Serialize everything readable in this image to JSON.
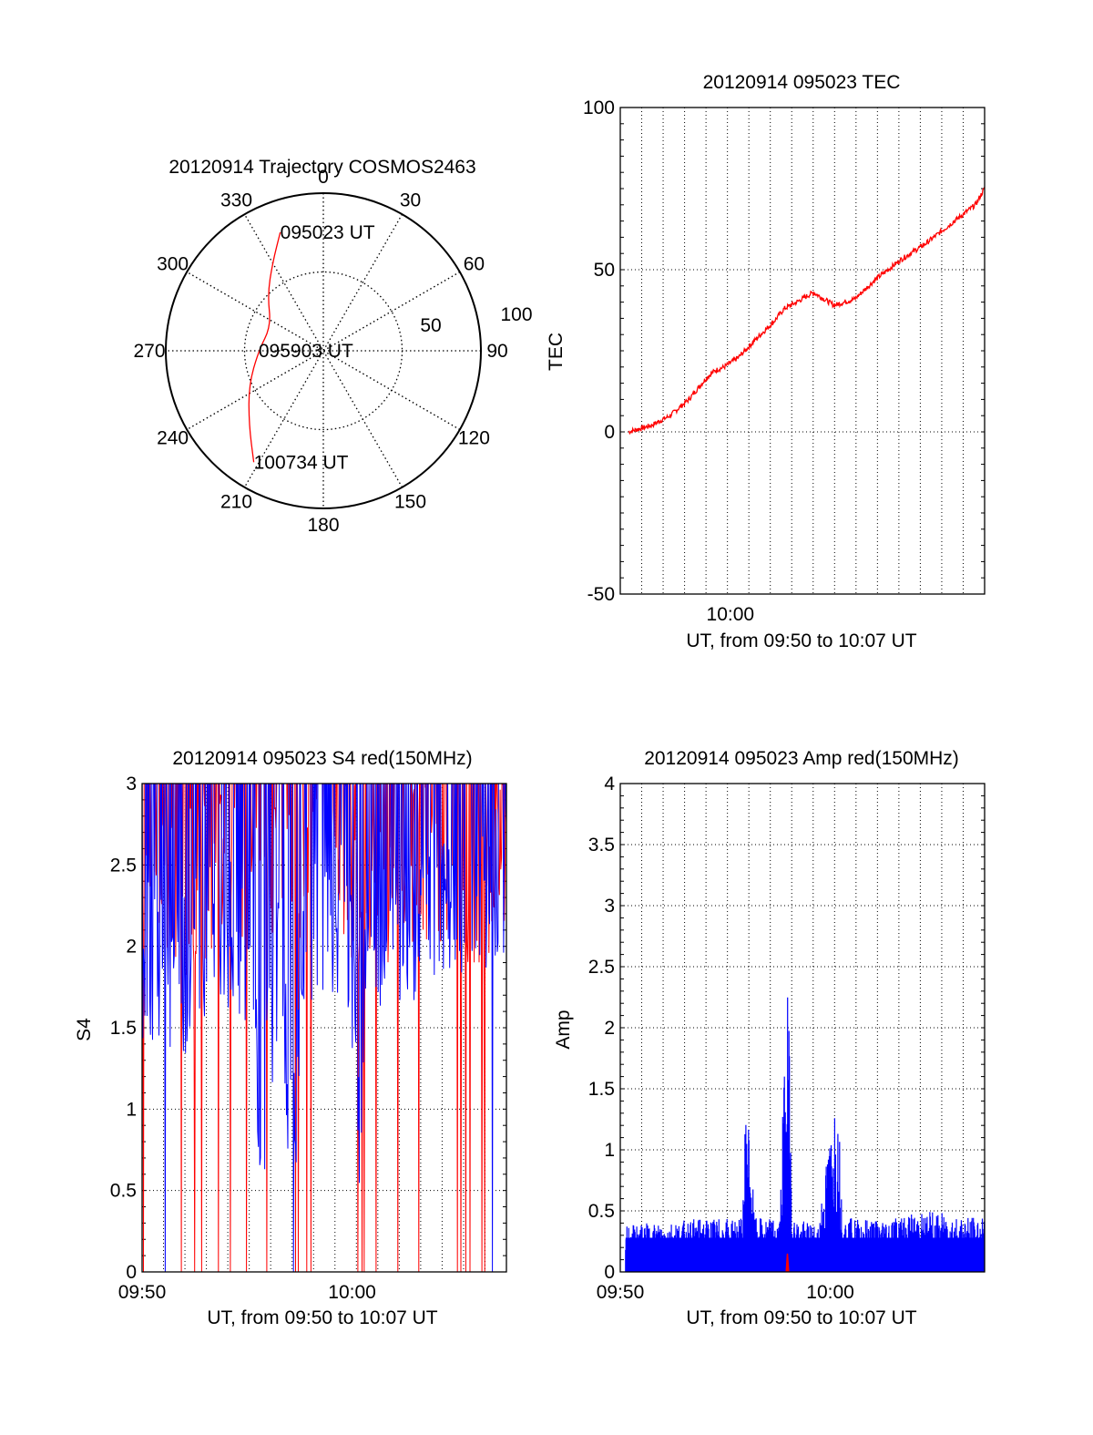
{
  "colors": {
    "red": "#ff0000",
    "blue": "#0000ff",
    "axis": "#000000",
    "grid": "#000000"
  },
  "chart_data": [
    {
      "type": "polar",
      "title": "20120914 Trajectory COSMOS2463",
      "azimuth_labels": [
        "0",
        "30",
        "60",
        "90",
        "120",
        "150",
        "180",
        "210",
        "240",
        "270",
        "300",
        "330"
      ],
      "radial_labels": [
        "50",
        "100"
      ],
      "grid": true,
      "trajectory": [
        {
          "azimuth": 340,
          "elevation": 18
        },
        {
          "azimuth": 330,
          "elevation": 32
        },
        {
          "azimuth": 315,
          "elevation": 45
        },
        {
          "azimuth": 295,
          "elevation": 57
        },
        {
          "azimuth": 270,
          "elevation": 53
        },
        {
          "azimuth": 245,
          "elevation": 43
        },
        {
          "azimuth": 225,
          "elevation": 30
        },
        {
          "azimuth": 212,
          "elevation": 15
        }
      ],
      "annotations": [
        {
          "text": "095023 UT",
          "azimuth": 340,
          "elevation": 18
        },
        {
          "text": "095903 UT",
          "azimuth": 270,
          "elevation": 53
        },
        {
          "text": "100734 UT",
          "azimuth": 212,
          "elevation": 15
        }
      ]
    },
    {
      "type": "line",
      "title": "20120914 095023 TEC",
      "ylabel": "TEC",
      "xlabel": "UT, from 09:50 to 10:07 UT",
      "x_tick_labels": [
        {
          "x": 10.0,
          "label": "10:00"
        }
      ],
      "y_tick_labels": [
        "-50",
        "0",
        "50",
        "100"
      ],
      "xlim": [
        9.947,
        10.1225
      ],
      "ylim": [
        -50,
        100
      ],
      "grid": true,
      "series": [
        {
          "color": "red",
          "x": [
            9.951,
            9.962,
            9.971,
            9.98,
            9.989,
            9.993,
            9.997,
            10.004,
            10.013,
            10.021,
            10.026,
            10.032,
            10.04,
            10.05,
            10.06,
            10.07,
            10.082,
            10.094,
            10.106,
            10.118,
            10.1225
          ],
          "y": [
            0,
            2,
            5,
            10,
            17,
            19,
            20,
            23,
            29,
            34,
            38,
            40,
            43,
            39,
            41,
            47,
            53,
            58,
            64,
            70,
            75
          ]
        }
      ]
    },
    {
      "type": "line",
      "title": "20120914 095023 S4 red(150MHz)",
      "ylabel": "S4",
      "xlabel": "UT, from 09:50 to 10:07 UT",
      "x_tick_labels": [
        {
          "x": 9.8333,
          "label": "09:50"
        },
        {
          "x": 10.0,
          "label": "10:00"
        }
      ],
      "y_tick_labels": [
        "0",
        "0.5",
        "1",
        "1.5",
        "2",
        "2.5",
        "3"
      ],
      "xlim": [
        9.8333,
        10.1225
      ],
      "ylim": [
        0,
        3
      ],
      "grid": true,
      "series": [
        {
          "color": "blue",
          "x": [
            9.84,
            9.86,
            9.88,
            9.9,
            9.92,
            9.925,
            9.93,
            9.94,
            9.955,
            9.96,
            9.965,
            9.98,
            9.99,
            10.0,
            10.006,
            10.01,
            10.03,
            10.05,
            10.07,
            10.09,
            10.11
          ],
          "y": [
            1.7,
            1.5,
            1.8,
            1.9,
            1.6,
            0.9,
            0.8,
            1.7,
            0.5,
            1.6,
            1.8,
            1.9,
            2.0,
            1.6,
            0.8,
            1.7,
            2.0,
            1.9,
            2.1,
            2.0,
            2.2
          ]
        },
        {
          "color": "red",
          "x": [
            9.845,
            9.87,
            9.895,
            9.92,
            9.945,
            9.97,
            9.995,
            10.02,
            10.045,
            10.07,
            10.095,
            10.118
          ],
          "y": [
            2.3,
            2.1,
            2.4,
            2.2,
            2.5,
            2.2,
            2.3,
            2.1,
            2.4,
            2.3,
            2.2,
            2.4
          ]
        }
      ]
    },
    {
      "type": "line",
      "title": "20120914 095023 Amp red(150MHz)",
      "ylabel": "Amp",
      "xlabel": "UT, from 09:50 to 10:07 UT",
      "x_tick_labels": [
        {
          "x": 9.8333,
          "label": "09:50"
        },
        {
          "x": 10.0,
          "label": "10:00"
        }
      ],
      "y_tick_labels": [
        "0",
        "0.5",
        "1",
        "1.5",
        "2",
        "2.5",
        "3",
        "3.5",
        "4"
      ],
      "xlim": [
        9.8333,
        10.1225
      ],
      "ylim": [
        0,
        4
      ],
      "grid": true,
      "series": [
        {
          "color": "blue",
          "x": [
            9.84,
            9.9,
            9.93,
            9.933,
            9.936,
            9.94,
            9.96,
            9.965,
            9.967,
            9.97,
            9.99,
            10.004,
            10.007,
            10.01,
            10.04,
            10.08,
            10.12
          ],
          "y": [
            0.35,
            0.4,
            0.4,
            1.3,
            1.05,
            0.4,
            0.4,
            2.15,
            2.0,
            0.4,
            0.35,
            1.3,
            1.1,
            0.4,
            0.4,
            0.45,
            0.4
          ]
        },
        {
          "color": "red",
          "x": [
            9.965,
            9.966,
            9.967
          ],
          "y": [
            0.0,
            0.15,
            0.0
          ]
        }
      ]
    }
  ]
}
